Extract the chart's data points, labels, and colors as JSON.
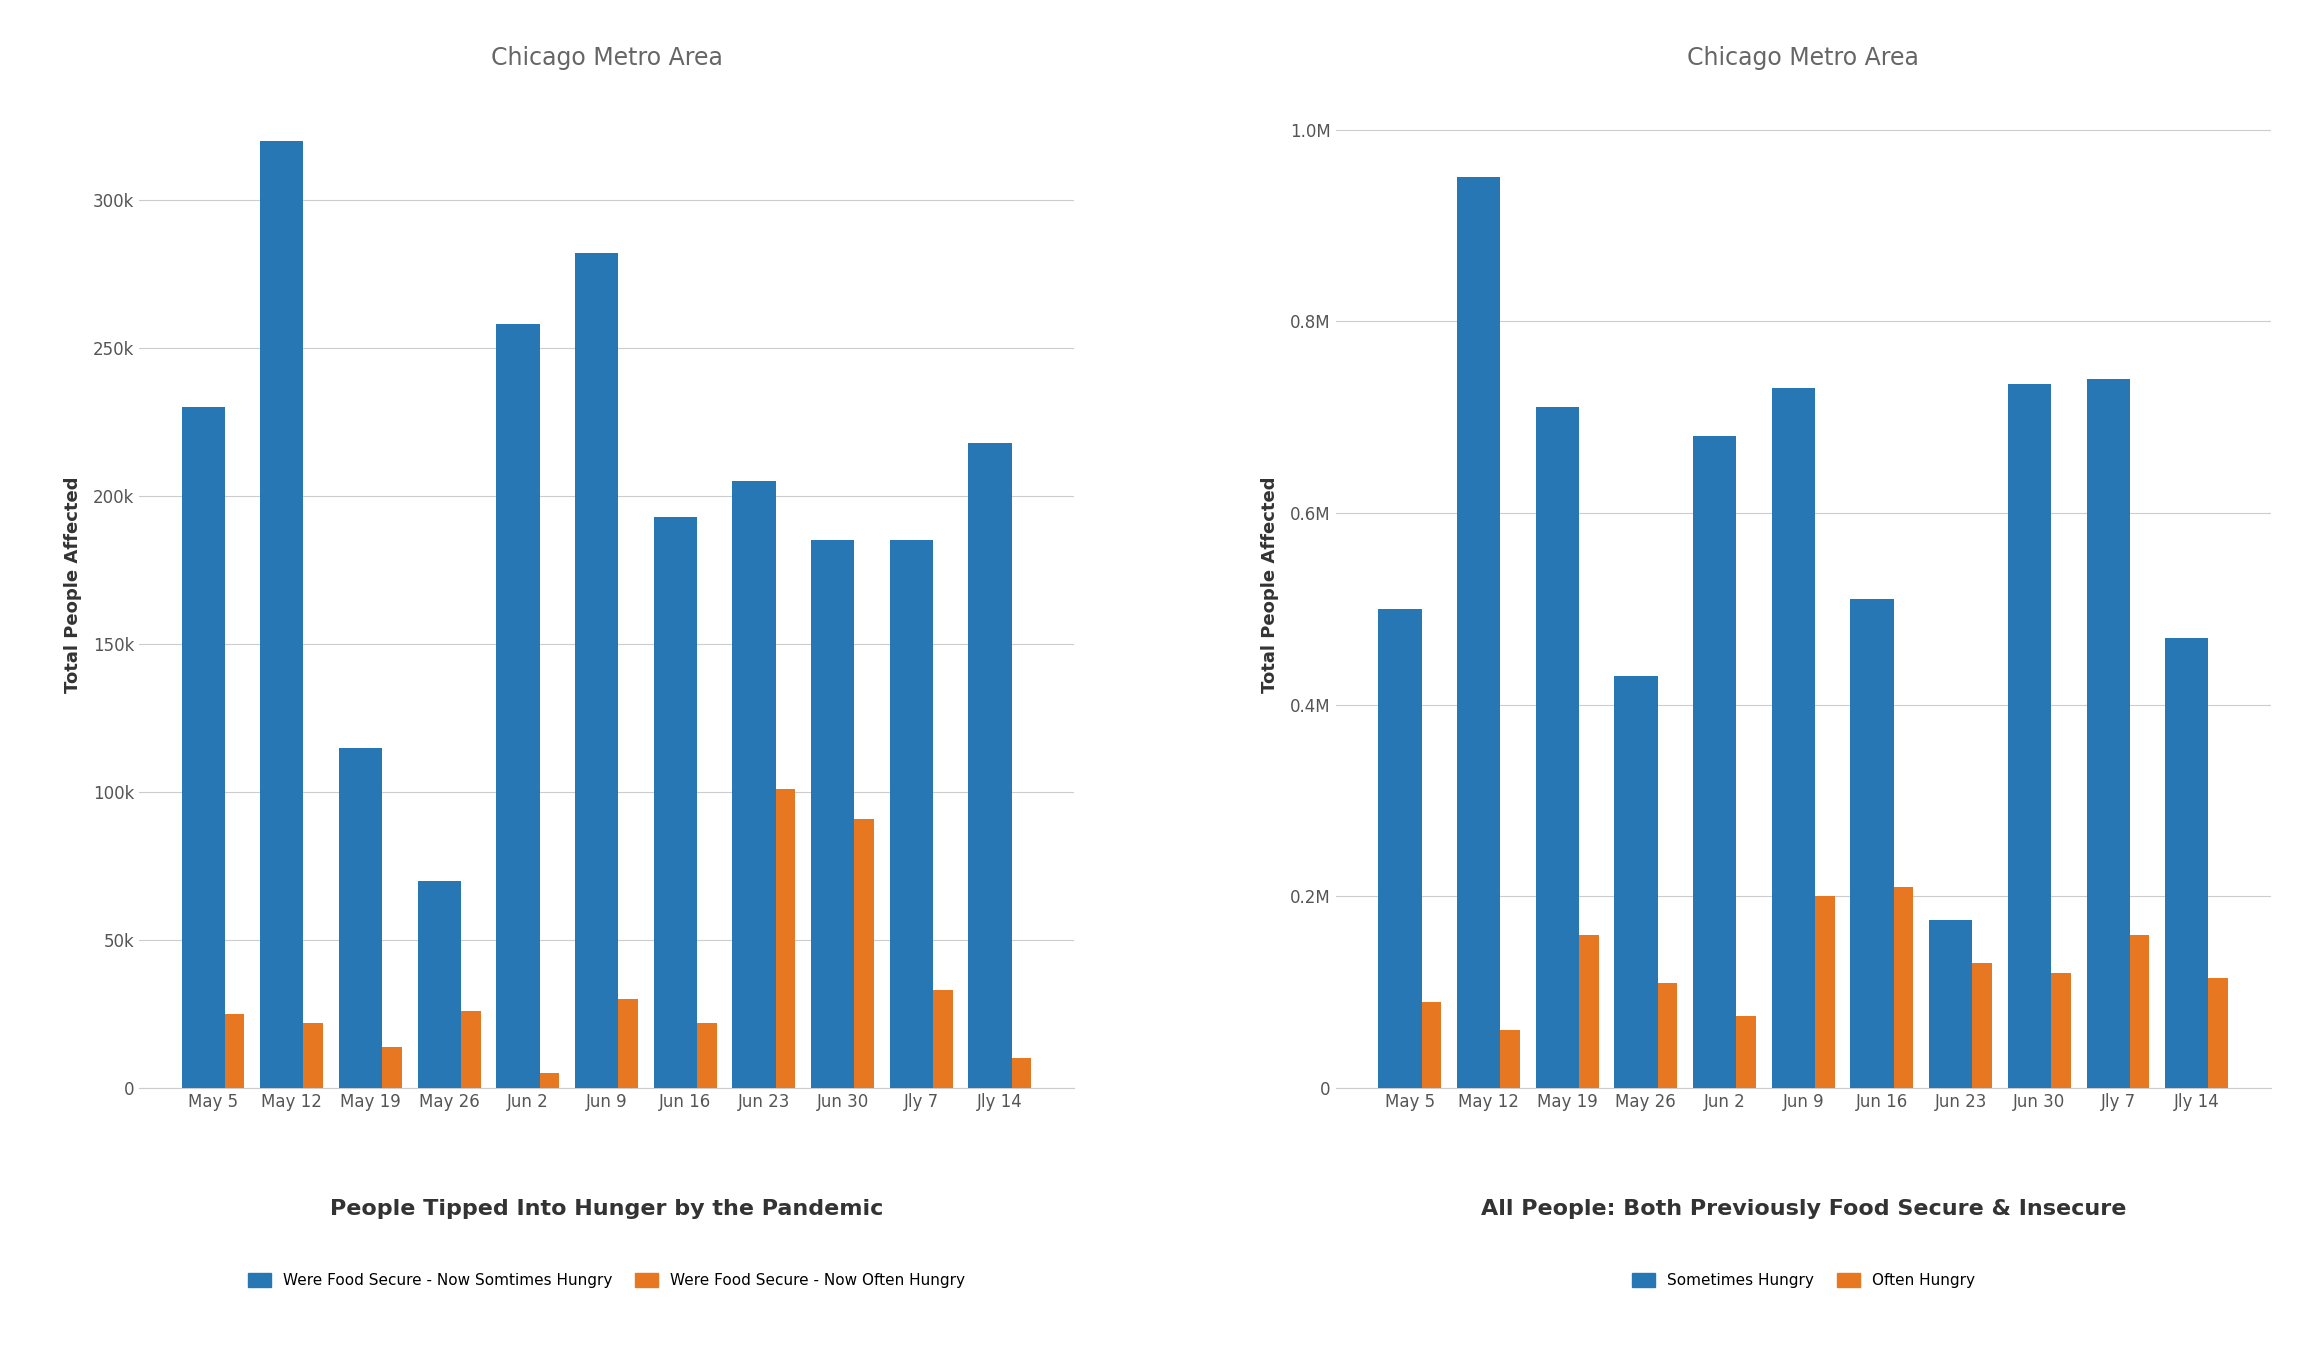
{
  "categories": [
    "May 5",
    "May 12",
    "May 19",
    "May 26",
    "Jun 2",
    "Jun 9",
    "Jun 16",
    "Jun 23",
    "Jun 30",
    "Jly 7",
    "Jly 14"
  ],
  "left_blue": [
    230000,
    320000,
    115000,
    70000,
    258000,
    282000,
    193000,
    205000,
    185000,
    185000,
    218000
  ],
  "left_orange": [
    25000,
    22000,
    14000,
    26000,
    5000,
    30000,
    22000,
    101000,
    91000,
    33000,
    10000
  ],
  "right_blue": [
    500000,
    950000,
    710000,
    430000,
    680000,
    730000,
    510000,
    175000,
    735000,
    740000,
    470000
  ],
  "right_orange": [
    90000,
    60000,
    160000,
    110000,
    75000,
    200000,
    210000,
    130000,
    120000,
    160000,
    115000
  ],
  "left_title": "Chicago Metro Area",
  "right_title": "Chicago Metro Area",
  "ylabel": "Total People Affected",
  "left_xlabel": "People Tipped Into Hunger by the Pandemic",
  "right_xlabel": "All People: Both Previously Food Secure & Insecure",
  "left_legend": [
    "Were Food Secure - Now Somtimes Hungry",
    "Were Food Secure - Now Often Hungry"
  ],
  "right_legend": [
    "Sometimes Hungry",
    "Often Hungry"
  ],
  "blue_color": "#2777B4",
  "orange_color": "#E87722",
  "background_color": "#FFFFFF",
  "grid_color": "#CCCCCC",
  "title_color": "#666666",
  "axis_label_color": "#333333",
  "tick_label_color": "#555555",
  "left_ylim": [
    0,
    340000
  ],
  "right_ylim": [
    0,
    1050000
  ],
  "blue_bar_width": 0.55,
  "orange_bar_width": 0.25
}
